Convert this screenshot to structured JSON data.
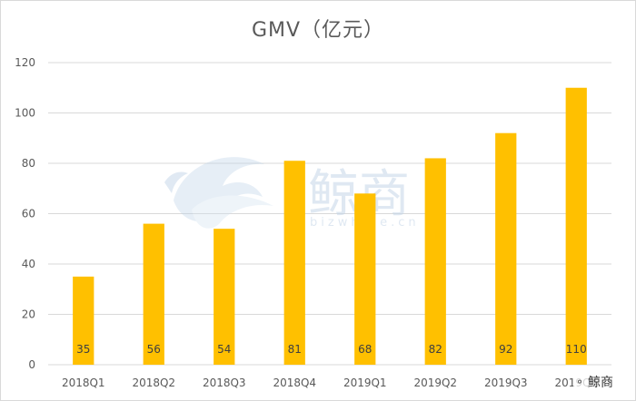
{
  "chart_data": {
    "type": "bar",
    "title": "GMV（亿元）",
    "xlabel": "",
    "ylabel": "",
    "categories": [
      "2018Q1",
      "2018Q2",
      "2018Q3",
      "2018Q4",
      "2019Q1",
      "2019Q2",
      "2019Q3",
      "2019Q4"
    ],
    "values": [
      35,
      56,
      54,
      81,
      68,
      82,
      92,
      110
    ],
    "data_labels": [
      "35",
      "56",
      "54",
      "81",
      "68",
      "82",
      "92",
      "110"
    ],
    "ylim": [
      0,
      120
    ],
    "yticks": [
      0,
      20,
      40,
      60,
      80,
      100,
      120
    ],
    "grid": true,
    "bar_color": "#FFC000",
    "legend": "none"
  },
  "watermark": {
    "brand": "鲸商",
    "url": "bizwhale.cn",
    "icon": "whale-wave-logo"
  },
  "corner_badge": {
    "icon": "wechat-icon",
    "text": "鲸商"
  }
}
